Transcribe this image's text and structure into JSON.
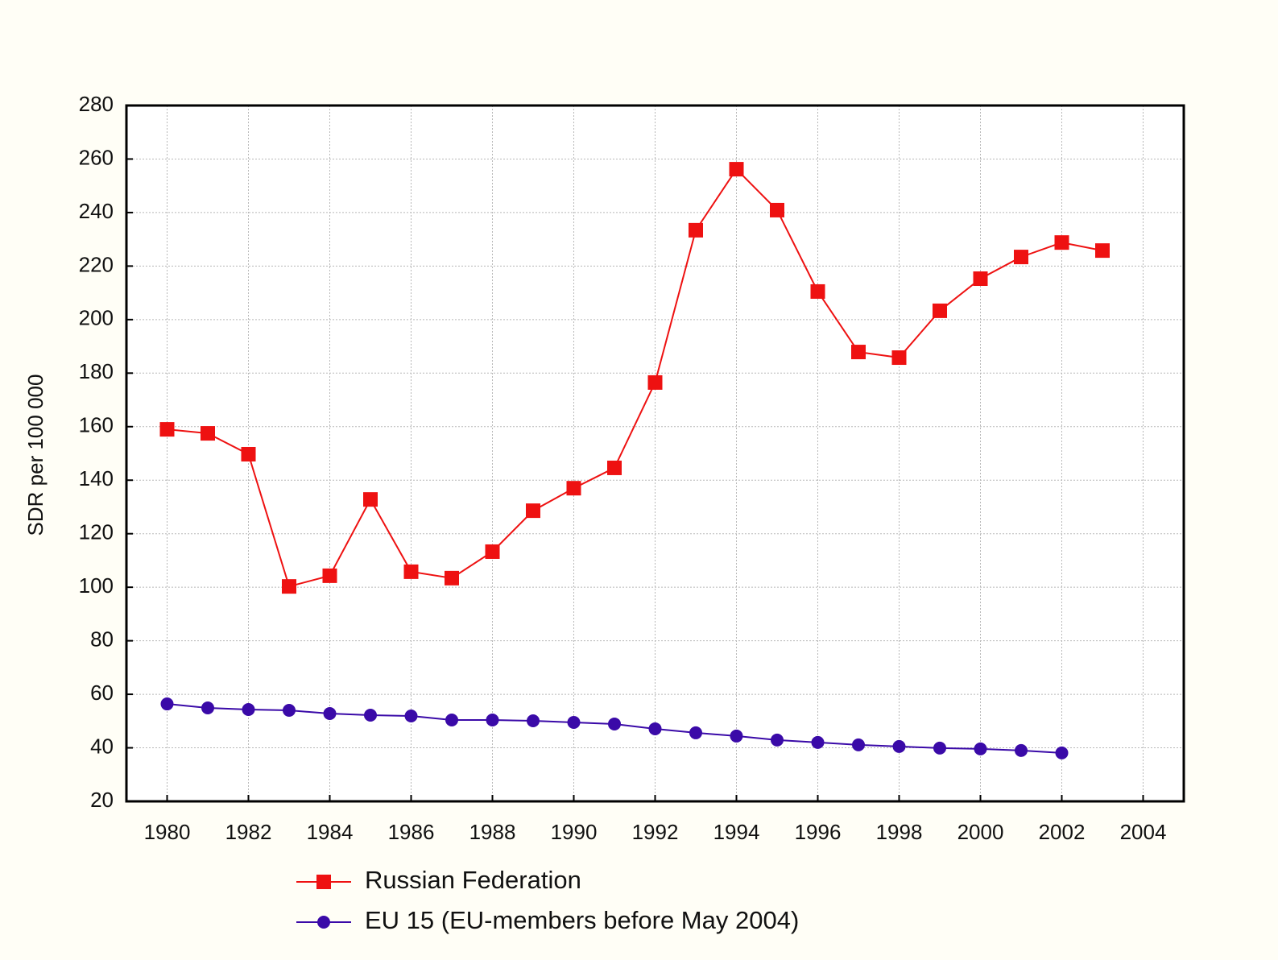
{
  "chart_data": {
    "type": "line",
    "y_label": "SDR per 100 000",
    "x": [
      1980,
      1981,
      1982,
      1983,
      1984,
      1985,
      1986,
      1987,
      1988,
      1989,
      1990,
      1991,
      1992,
      1993,
      1994,
      1995,
      1996,
      1997,
      1998,
      1999,
      2000,
      2001,
      2002,
      2003
    ],
    "series": [
      {
        "name": "Russian Federation",
        "color": "#ee1111",
        "marker": "square",
        "values": [
          159,
          157.5,
          149.7,
          100.3,
          104.3,
          132.8,
          105.8,
          103.4,
          113.3,
          128.6,
          137,
          144.6,
          176.5,
          233.4,
          256.2,
          240.9,
          210.5,
          187.9,
          185.8,
          203.3,
          215.3,
          223.4,
          228.8,
          225.8
        ]
      },
      {
        "name": "EU 15  (EU-members before May 2004)",
        "color": "#3a0aa8",
        "marker": "circle",
        "values": [
          56.4,
          54.9,
          54.3,
          54,
          52.8,
          52.2,
          51.9,
          50.4,
          50.4,
          50.1,
          49.5,
          48.9,
          47.1,
          45.6,
          44.4,
          42.9,
          42,
          41.1,
          40.5,
          39.9,
          39.6,
          39,
          38.1,
          null
        ]
      }
    ],
    "xlim": [
      1979,
      2005
    ],
    "xticks": [
      1980,
      1982,
      1984,
      1986,
      1988,
      1990,
      1992,
      1994,
      1996,
      1998,
      2000,
      2002,
      2004
    ],
    "ylim": [
      20,
      280
    ],
    "yticks": [
      20,
      40,
      60,
      80,
      100,
      120,
      140,
      160,
      180,
      200,
      220,
      240,
      260,
      280
    ],
    "grid": true,
    "legend": "bottom"
  }
}
